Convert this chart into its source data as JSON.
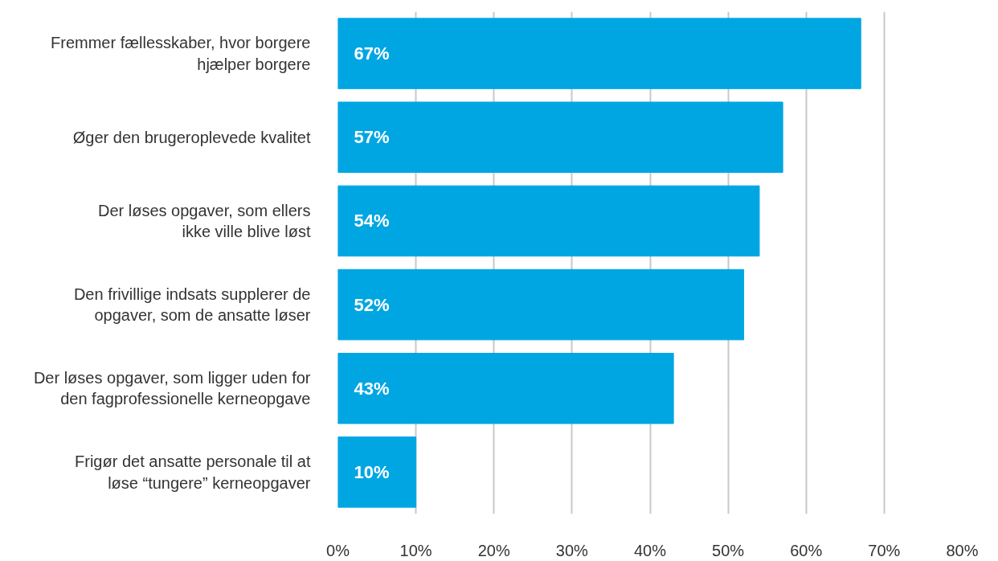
{
  "chart_data": {
    "type": "bar",
    "orientation": "horizontal",
    "categories": [
      "Fremmer fællesskaber, hvor borgere\nhjælper borgere",
      "Øger den brugeroplevede kvalitet",
      "Der løses opgaver, som ellers\nikke ville blive løst",
      "Den frivillige indsats supplerer de\nopgaver, som de ansatte løser",
      "Der løses opgaver, som ligger uden for\nden fagprofessionelle kerneopgave",
      "Frigør det ansatte personale til at\nløse “tungere” kerneopgaver"
    ],
    "values": [
      67,
      57,
      54,
      52,
      43,
      10
    ],
    "value_labels": [
      "67%",
      "57%",
      "54%",
      "52%",
      "43%",
      "10%"
    ],
    "color": "#00a6e2",
    "xlim": [
      0,
      80
    ],
    "xticks": [
      {
        "value": 0,
        "label": "0%"
      },
      {
        "value": 10,
        "label": "10%"
      },
      {
        "value": 20,
        "label": "20%"
      },
      {
        "value": 30,
        "label": "30%"
      },
      {
        "value": 40,
        "label": "40%"
      },
      {
        "value": 50,
        "label": "50%"
      },
      {
        "value": 60,
        "label": "60%"
      },
      {
        "value": 70,
        "label": "70%"
      },
      {
        "value": 80,
        "label": "80%"
      }
    ],
    "grid": "x"
  }
}
